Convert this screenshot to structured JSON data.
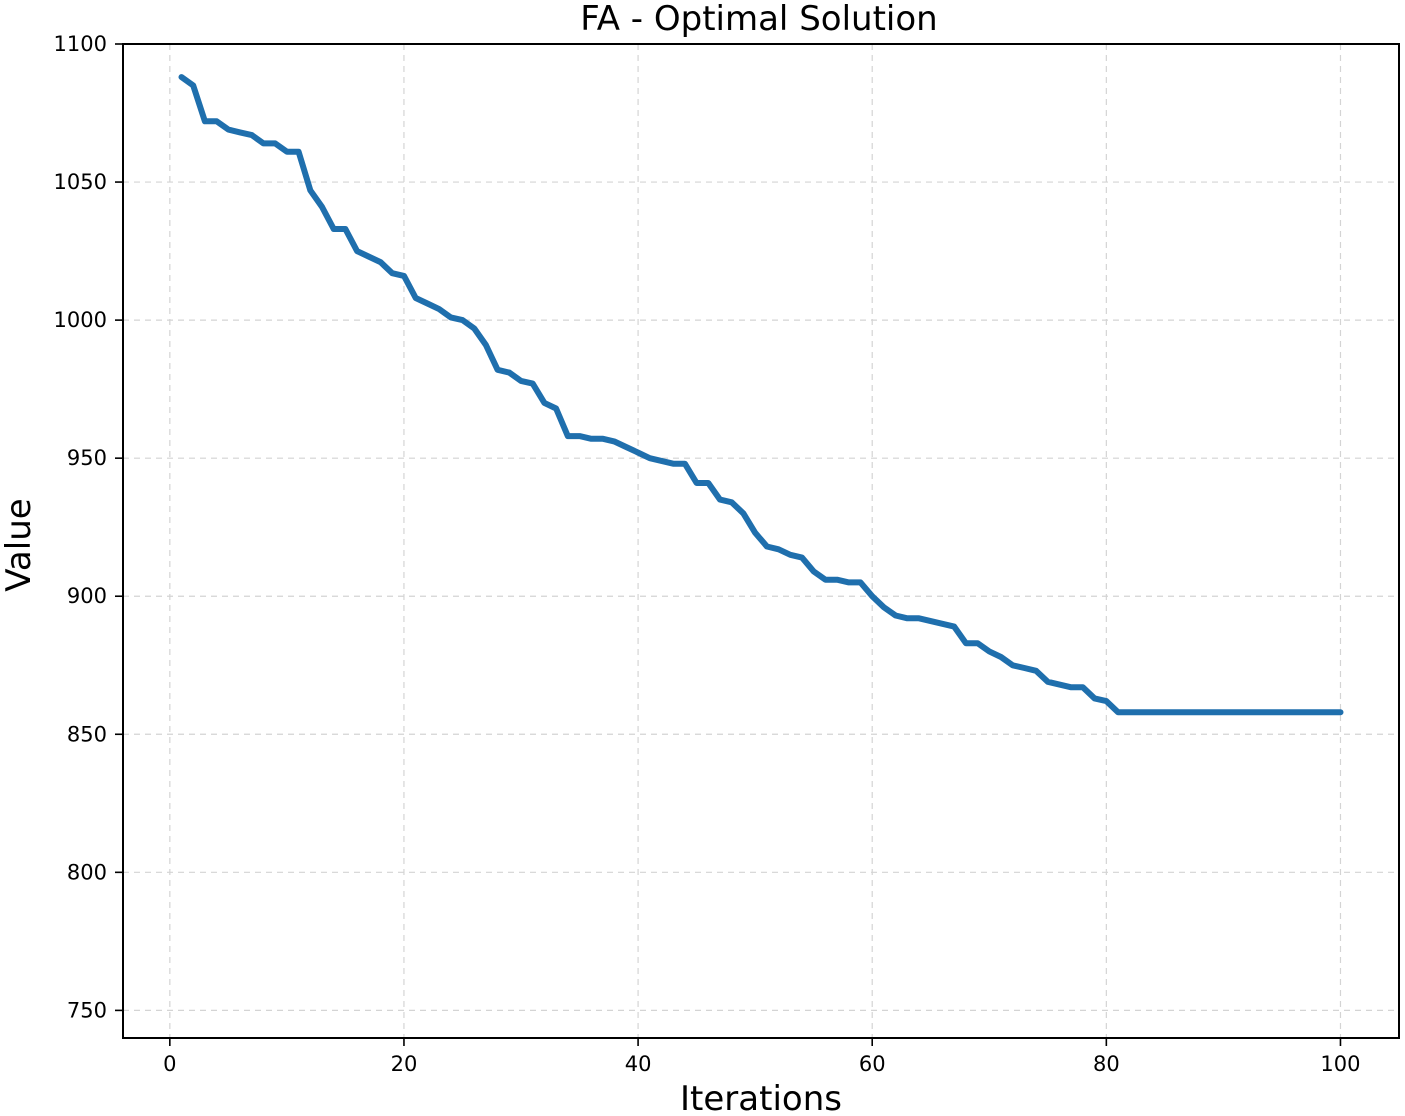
{
  "chart_data": {
    "type": "line",
    "title": "FA - Optimal Solution",
    "xlabel": "Iterations",
    "ylabel": "Value",
    "xlim": [
      -4,
      105
    ],
    "ylim": [
      740,
      1100
    ],
    "xticks": [
      0,
      20,
      40,
      60,
      80,
      100
    ],
    "yticks": [
      750,
      800,
      850,
      900,
      950,
      1000,
      1050,
      1100
    ],
    "grid": true,
    "series": [
      {
        "color": "#1f6fad",
        "x": [
          1,
          2,
          3,
          4,
          5,
          6,
          7,
          8,
          9,
          10,
          11,
          12,
          13,
          14,
          15,
          16,
          17,
          18,
          19,
          20,
          21,
          22,
          23,
          24,
          25,
          26,
          27,
          28,
          29,
          30,
          31,
          32,
          33,
          34,
          35,
          36,
          37,
          38,
          39,
          40,
          41,
          42,
          43,
          44,
          45,
          46,
          47,
          48,
          49,
          50,
          51,
          52,
          53,
          54,
          55,
          56,
          57,
          58,
          59,
          60,
          61,
          62,
          63,
          64,
          65,
          66,
          67,
          68,
          69,
          70,
          71,
          72,
          73,
          74,
          75,
          76,
          77,
          78,
          79,
          80,
          81,
          82,
          83,
          84,
          85,
          86,
          87,
          88,
          89,
          90,
          91,
          92,
          93,
          94,
          95,
          96,
          97,
          98,
          99,
          100
        ],
        "y": [
          1088,
          1085,
          1072,
          1072,
          1069,
          1068,
          1067,
          1064,
          1064,
          1061,
          1061,
          1047,
          1041,
          1033,
          1033,
          1025,
          1023,
          1021,
          1017,
          1016,
          1008,
          1006,
          1004,
          1001,
          1000,
          997,
          991,
          982,
          981,
          978,
          977,
          970,
          968,
          958,
          958,
          957,
          957,
          956,
          954,
          952,
          950,
          949,
          948,
          948,
          941,
          941,
          935,
          934,
          930,
          923,
          918,
          917,
          915,
          914,
          909,
          906,
          906,
          905,
          905,
          900,
          896,
          893,
          892,
          892,
          891,
          890,
          889,
          883,
          883,
          880,
          878,
          875,
          874,
          873,
          869,
          868,
          867,
          867,
          863,
          862,
          858,
          858,
          858,
          858,
          858,
          858,
          858,
          858,
          858,
          858,
          858,
          858,
          858,
          858,
          858,
          858,
          858,
          858,
          858,
          858
        ]
      }
    ]
  }
}
